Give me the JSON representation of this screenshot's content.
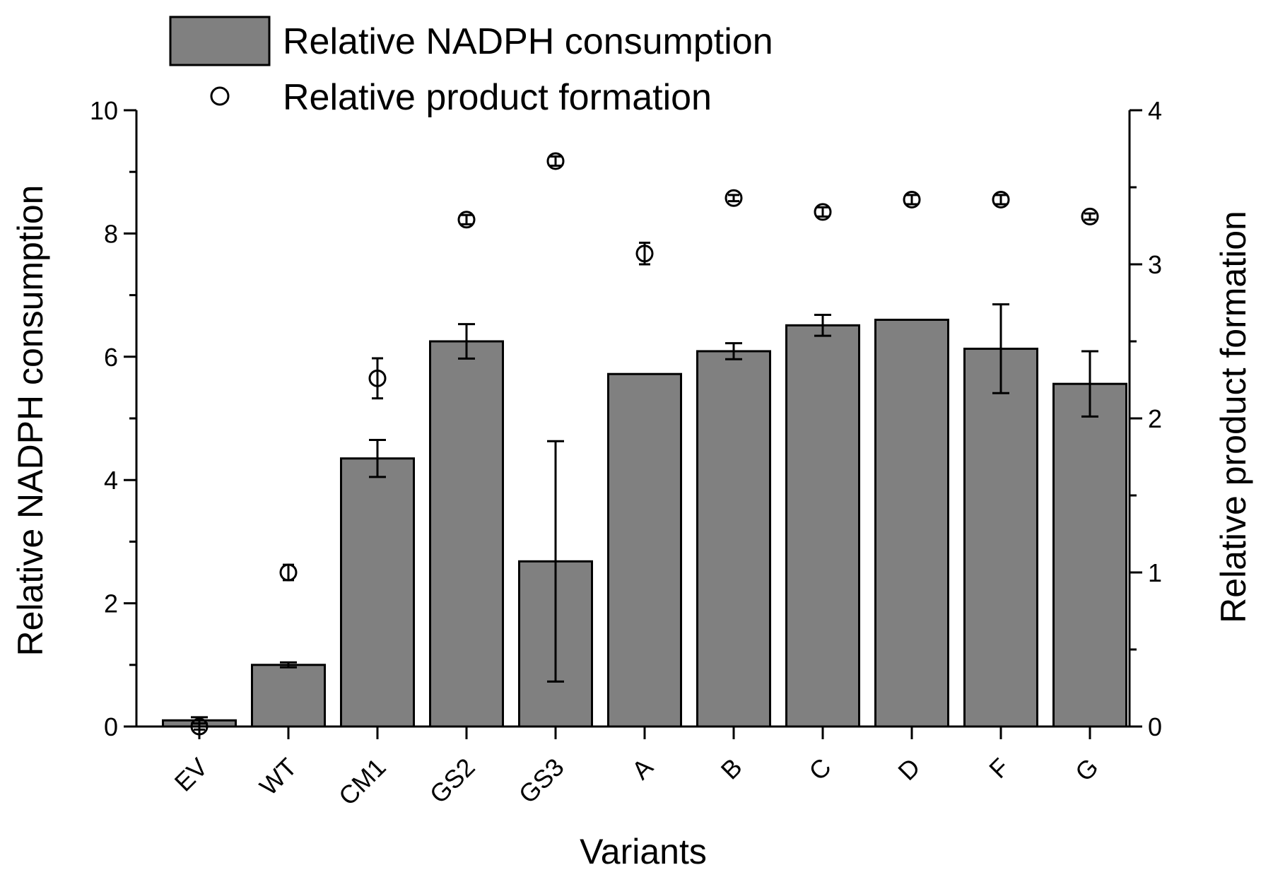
{
  "chart_data": {
    "type": "bar",
    "xlabel": "Variants",
    "ylabel": "Relative NADPH consumption",
    "y2label": "Relative product formation",
    "ylim": [
      0,
      10
    ],
    "y2lim": [
      0,
      4
    ],
    "yticks": [
      "0",
      "2",
      "4",
      "6",
      "8",
      "10"
    ],
    "y2ticks": [
      "0",
      "1",
      "2",
      "3",
      "4"
    ],
    "categories": [
      "EV",
      "WT",
      "CM1",
      "GS2",
      "GS3",
      "A",
      "B",
      "C",
      "D",
      "F",
      "G"
    ],
    "series": [
      {
        "name": "Relative NADPH consumption",
        "kind": "bar",
        "axis": "left",
        "color": "#808080",
        "values": [
          0.1,
          1.0,
          4.35,
          6.25,
          2.68,
          5.72,
          6.09,
          6.51,
          6.6,
          6.13,
          5.56
        ],
        "errors": [
          0.05,
          0.04,
          0.3,
          0.28,
          1.95,
          0,
          0.13,
          0.17,
          0,
          0.72,
          0.53
        ]
      },
      {
        "name": "Relative product formation",
        "kind": "scatter",
        "axis": "right",
        "marker": "open-circle",
        "values": [
          0.0,
          1.0,
          2.26,
          3.29,
          3.67,
          3.07,
          3.43,
          3.34,
          3.42,
          3.42,
          3.31
        ],
        "errors": [
          0.02,
          0.05,
          0.13,
          0.03,
          0.03,
          0.07,
          0.02,
          0.03,
          0.03,
          0.03,
          0.02
        ]
      }
    ],
    "legend": {
      "position": "top-left",
      "entries": [
        "Relative NADPH consumption",
        "Relative product formation"
      ]
    }
  }
}
